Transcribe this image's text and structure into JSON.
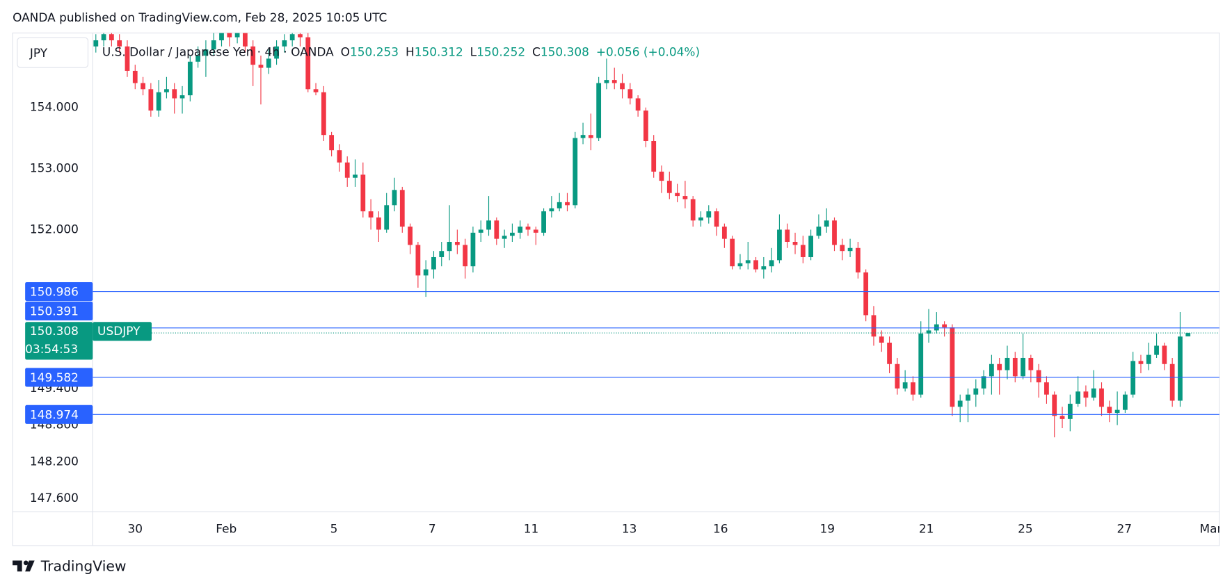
{
  "header": {
    "text": "OANDA published on TradingView.com, Feb 28, 2025 10:05 UTC"
  },
  "footer": {
    "brand": "TradingView"
  },
  "chart_data": {
    "type": "candlestick",
    "currency": "JPY",
    "legend": {
      "symbol": "U.S. Dollar / Japanese Yen · 4h · OANDA",
      "open_label": "O",
      "open": 150.253,
      "high_label": "H",
      "high": 150.312,
      "low_label": "L",
      "low": 150.252,
      "close_label": "C",
      "close": 150.308,
      "change": {
        "value": 0.056,
        "label": "+0.056"
      },
      "change_pct": {
        "value": 0.04,
        "label": "(+0.04%)"
      }
    },
    "up_color": "#089981",
    "down_color": "#f23645",
    "open": [
      155.0,
      155.1,
      155.2,
      155.1,
      155.0,
      154.6,
      154.4,
      154.3,
      153.95,
      154.25,
      154.3,
      154.15,
      154.2,
      154.75,
      154.85,
      154.95,
      155.1,
      155.25,
      155.15,
      155.3,
      155.0,
      154.7,
      154.65,
      154.8,
      155.0,
      155.1,
      155.2,
      155.15,
      154.3,
      154.25,
      153.55,
      153.3,
      153.1,
      152.85,
      152.9,
      152.3,
      152.2,
      152.0,
      152.4,
      152.65,
      152.05,
      151.75,
      151.25,
      151.35,
      151.55,
      151.65,
      151.8,
      151.75,
      151.4,
      151.95,
      152.0,
      152.15,
      151.85,
      151.9,
      151.95,
      152.05,
      152.0,
      151.95,
      152.3,
      152.35,
      152.45,
      152.4,
      153.5,
      153.55,
      153.5,
      154.4,
      154.45,
      154.4,
      154.3,
      154.15,
      153.95,
      153.45,
      152.95,
      152.8,
      152.6,
      152.55,
      152.5,
      152.15,
      152.2,
      152.3,
      152.05,
      151.85,
      151.4,
      151.45,
      151.5,
      151.35,
      151.4,
      151.5,
      152.0,
      151.8,
      151.75,
      151.55,
      151.9,
      152.05,
      152.15,
      151.75,
      151.65,
      151.7,
      151.3,
      150.6,
      150.25,
      150.15,
      149.8,
      149.4,
      149.5,
      149.3,
      150.3,
      150.35,
      150.45,
      150.4,
      149.1,
      149.2,
      149.3,
      149.4,
      149.6,
      149.8,
      149.7,
      149.9,
      149.6,
      149.9,
      149.7,
      149.5,
      149.3,
      148.95,
      148.9,
      149.15,
      149.35,
      149.25,
      149.4,
      149.1,
      149.0,
      149.05,
      149.3,
      149.85,
      149.8,
      149.95,
      150.1,
      149.8,
      149.2,
      150.253
    ],
    "high": [
      155.2,
      155.3,
      155.3,
      155.2,
      155.1,
      154.7,
      154.5,
      154.4,
      154.45,
      154.5,
      154.4,
      154.35,
      154.85,
      155.0,
      155.1,
      155.25,
      155.4,
      155.35,
      155.4,
      155.4,
      155.1,
      154.85,
      154.95,
      155.1,
      155.2,
      155.3,
      155.35,
      155.25,
      154.4,
      154.35,
      153.6,
      153.4,
      153.2,
      153.15,
      153.1,
      152.5,
      152.3,
      152.6,
      152.85,
      152.7,
      152.1,
      151.8,
      151.5,
      151.65,
      151.8,
      152.4,
      152.0,
      151.85,
      152.05,
      152.15,
      152.55,
      152.2,
      152.0,
      152.1,
      152.15,
      152.1,
      152.05,
      152.35,
      152.55,
      152.6,
      152.6,
      153.6,
      153.75,
      153.9,
      154.5,
      154.8,
      154.65,
      154.55,
      154.4,
      154.2,
      154.0,
      153.55,
      153.05,
      152.95,
      152.75,
      152.8,
      152.55,
      152.3,
      152.4,
      152.35,
      152.1,
      151.9,
      151.6,
      151.8,
      151.55,
      151.55,
      151.7,
      152.25,
      152.1,
      151.95,
      151.9,
      152.0,
      152.25,
      152.35,
      152.2,
      151.85,
      151.85,
      151.8,
      151.35,
      150.75,
      150.35,
      150.25,
      149.9,
      149.7,
      149.6,
      150.5,
      150.7,
      150.65,
      150.5,
      150.45,
      149.3,
      149.4,
      149.55,
      149.7,
      149.95,
      149.9,
      150.1,
      150.0,
      150.3,
      149.95,
      149.8,
      149.6,
      149.35,
      149.1,
      149.3,
      149.6,
      149.45,
      149.7,
      149.5,
      149.2,
      149.35,
      149.35,
      150.0,
      149.95,
      150.15,
      150.3,
      150.15,
      149.9,
      150.65,
      150.312
    ],
    "low": [
      154.9,
      155.0,
      155.0,
      154.9,
      154.5,
      154.3,
      154.2,
      153.85,
      153.85,
      154.15,
      153.9,
      153.9,
      154.1,
      154.65,
      154.5,
      154.85,
      155.0,
      155.0,
      155.05,
      154.9,
      154.35,
      154.05,
      154.55,
      154.7,
      154.9,
      155.0,
      155.0,
      154.25,
      154.2,
      153.45,
      153.2,
      152.95,
      152.7,
      152.7,
      152.2,
      152.0,
      151.8,
      151.95,
      152.3,
      151.95,
      151.6,
      151.05,
      150.9,
      151.2,
      151.4,
      151.5,
      151.6,
      151.2,
      151.3,
      151.8,
      151.9,
      151.75,
      151.7,
      151.8,
      151.85,
      151.9,
      151.75,
      151.9,
      152.2,
      152.3,
      152.3,
      152.35,
      153.4,
      153.3,
      153.45,
      154.3,
      154.3,
      154.15,
      154.05,
      153.85,
      153.35,
      152.85,
      152.6,
      152.5,
      152.45,
      152.35,
      152.05,
      152.05,
      152.1,
      151.9,
      151.7,
      151.35,
      151.35,
      151.35,
      151.3,
      151.2,
      151.3,
      151.45,
      151.7,
      151.6,
      151.45,
      151.5,
      151.85,
      151.95,
      151.65,
      151.5,
      151.55,
      151.2,
      150.5,
      150.1,
      150.0,
      149.65,
      149.3,
      149.35,
      149.2,
      149.25,
      150.15,
      150.3,
      150.25,
      148.95,
      148.85,
      148.85,
      149.1,
      149.3,
      149.3,
      149.3,
      149.55,
      149.5,
      149.55,
      149.5,
      149.25,
      149.15,
      148.6,
      148.75,
      148.7,
      149.1,
      149.1,
      149.2,
      148.95,
      148.85,
      148.8,
      149.0,
      149.25,
      149.65,
      149.7,
      149.9,
      149.7,
      149.1,
      149.1,
      150.252
    ],
    "close": [
      155.1,
      155.2,
      155.1,
      155.0,
      154.6,
      154.4,
      154.3,
      153.95,
      154.25,
      154.3,
      154.15,
      154.2,
      154.75,
      154.85,
      154.95,
      155.1,
      155.25,
      155.15,
      155.3,
      155.0,
      154.7,
      154.65,
      154.8,
      155.0,
      155.1,
      155.2,
      155.15,
      154.3,
      154.25,
      153.55,
      153.3,
      153.1,
      152.85,
      152.9,
      152.3,
      152.2,
      152.0,
      152.4,
      152.65,
      152.05,
      151.75,
      151.25,
      151.35,
      151.55,
      151.65,
      151.8,
      151.75,
      151.4,
      151.95,
      152.0,
      152.15,
      151.85,
      151.9,
      151.95,
      152.05,
      152.0,
      151.95,
      152.3,
      152.35,
      152.45,
      152.4,
      153.5,
      153.55,
      153.5,
      154.4,
      154.45,
      154.4,
      154.3,
      154.15,
      153.95,
      153.45,
      152.95,
      152.8,
      152.6,
      152.55,
      152.5,
      152.15,
      152.2,
      152.3,
      152.05,
      151.85,
      151.4,
      151.45,
      151.5,
      151.35,
      151.4,
      151.5,
      152.0,
      151.8,
      151.75,
      151.55,
      151.9,
      152.05,
      152.15,
      151.75,
      151.65,
      151.7,
      151.3,
      150.6,
      150.25,
      150.15,
      149.8,
      149.4,
      149.5,
      149.3,
      150.3,
      150.35,
      150.45,
      150.4,
      149.1,
      149.2,
      149.3,
      149.4,
      149.6,
      149.8,
      149.7,
      149.9,
      149.6,
      149.9,
      149.7,
      149.5,
      149.3,
      148.95,
      148.9,
      149.15,
      149.35,
      149.25,
      149.4,
      149.1,
      149.0,
      149.05,
      149.3,
      149.85,
      149.8,
      149.95,
      150.1,
      149.8,
      149.2,
      150.25,
      150.308
    ],
    "xlim": [
      -0.4,
      143
    ],
    "xticks": [
      {
        "value": 5,
        "label": "30"
      },
      {
        "value": 16.6,
        "label": "Feb"
      },
      {
        "value": 30.3,
        "label": "5"
      },
      {
        "value": 42.8,
        "label": "7"
      },
      {
        "value": 55.4,
        "label": "11"
      },
      {
        "value": 67.9,
        "label": "13"
      },
      {
        "value": 79.5,
        "label": "16"
      },
      {
        "value": 93.1,
        "label": "19"
      },
      {
        "value": 105.7,
        "label": "21"
      },
      {
        "value": 118.3,
        "label": "25"
      },
      {
        "value": 130.9,
        "label": "27"
      },
      {
        "value": 141.9,
        "label": "Mar"
      }
    ],
    "ylim": [
      147.38,
      155.22
    ],
    "yticks": [
      {
        "value": 154,
        "label": "154.000"
      },
      {
        "value": 153,
        "label": "153.000"
      },
      {
        "value": 152,
        "label": "152.000"
      },
      {
        "value": 149.4,
        "label": "149.400"
      },
      {
        "value": 148.8,
        "label": "148.800"
      },
      {
        "value": 148.2,
        "label": "148.200"
      },
      {
        "value": 147.6,
        "label": "147.600"
      }
    ],
    "price_lines": [
      150.986,
      150.391,
      149.582,
      148.974
    ],
    "price_line_color": "#2962ff",
    "last_price": 150.308,
    "countdown": "03:54:53",
    "symbol_tag": "USDJPY"
  }
}
